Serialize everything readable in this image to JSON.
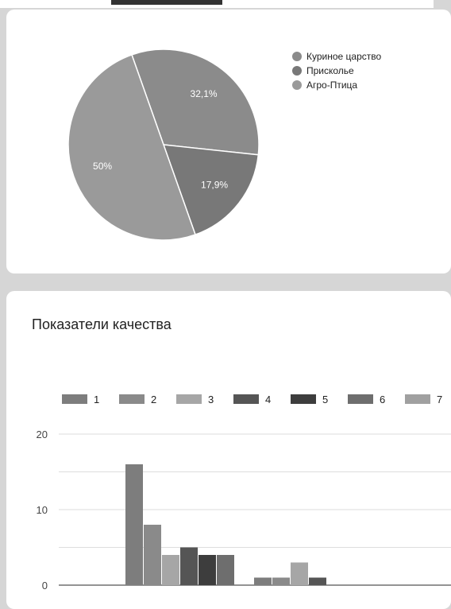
{
  "chart_data": [
    {
      "type": "pie",
      "labels": [
        "Куриное царство",
        "Присколье",
        "Агро-Птица"
      ],
      "values": [
        32.1,
        17.9,
        50
      ],
      "value_labels": [
        "32,1%",
        "17,9%",
        "50%"
      ],
      "legend": "right",
      "colors": [
        "#8b8b8b",
        "#787878",
        "#9a9a9a"
      ]
    },
    {
      "type": "bar",
      "title": "Показатели качества",
      "legend": "top",
      "series_names": [
        "1",
        "2",
        "3",
        "4",
        "5",
        "6",
        "7"
      ],
      "series_colors": [
        "#7d7d7d",
        "#8a8a8a",
        "#a6a6a6",
        "#555555",
        "#3d3d3d",
        "#6e6e6e",
        "#a0a0a0"
      ],
      "y_ticks": [
        "20",
        "10",
        "0"
      ],
      "ylim": [
        0,
        20
      ],
      "groups": [
        {
          "values": [
            16,
            8,
            4,
            5,
            4,
            4
          ]
        },
        {
          "values": [
            1,
            1,
            3,
            1
          ]
        }
      ]
    }
  ]
}
